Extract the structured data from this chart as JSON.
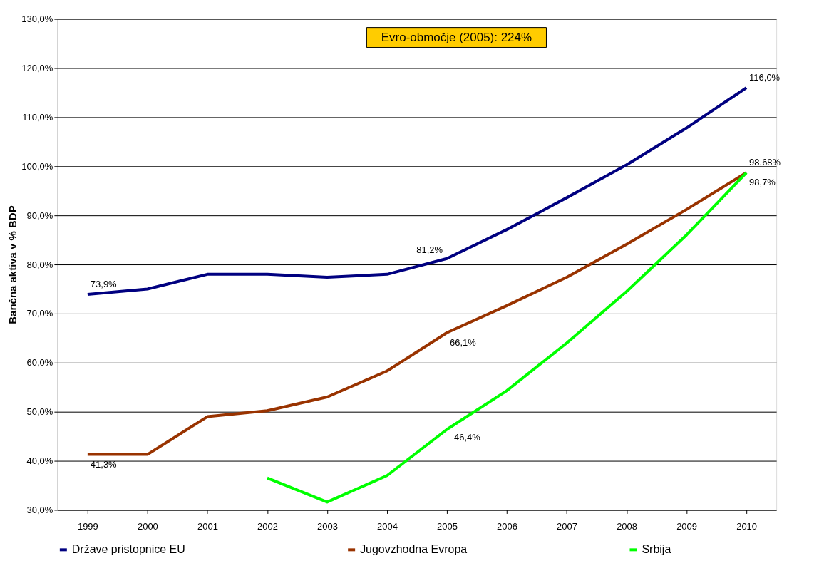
{
  "chart_data": {
    "type": "line",
    "ylabel": "Bančna aktiva v % BDP",
    "categories": [
      "1999",
      "2000",
      "2001",
      "2002",
      "2003",
      "2004",
      "2005",
      "2006",
      "2007",
      "2008",
      "2009",
      "2010"
    ],
    "series": [
      {
        "name": "Države pristopnice EU",
        "color": "#000080",
        "values": [
          73.9,
          75.0,
          78.0,
          78.0,
          77.4,
          78.0,
          81.2,
          87.1,
          93.6,
          100.3,
          107.8,
          116.0
        ],
        "value_labels": [
          "73,9%",
          null,
          null,
          null,
          null,
          null,
          "81,2%",
          null,
          null,
          null,
          null,
          "116,0%"
        ]
      },
      {
        "name": "Jugovzhodna Evropa",
        "color": "#993300",
        "values": [
          41.3,
          41.3,
          49.0,
          50.2,
          53.0,
          58.3,
          66.1,
          71.6,
          77.4,
          84.1,
          91.2,
          98.7
        ],
        "value_labels": [
          "41,3%",
          null,
          null,
          null,
          null,
          null,
          "66,1%",
          null,
          null,
          null,
          null,
          "98,7%"
        ]
      },
      {
        "name": "Srbija",
        "color": "#00ff00",
        "values": [
          null,
          null,
          null,
          36.5,
          31.6,
          37.0,
          46.4,
          54.3,
          64.0,
          74.5,
          86.0,
          98.68
        ],
        "value_labels": [
          null,
          null,
          null,
          null,
          null,
          null,
          "46,4%",
          null,
          null,
          null,
          null,
          "98,68%"
        ]
      }
    ],
    "ylim": [
      30,
      130
    ],
    "yticks": [
      {
        "value": 30,
        "label": "30,0%"
      },
      {
        "value": 40,
        "label": "40,0%"
      },
      {
        "value": 50,
        "label": "50,0%"
      },
      {
        "value": 60,
        "label": "60,0%"
      },
      {
        "value": 70,
        "label": "70,0%"
      },
      {
        "value": 80,
        "label": "80,0%"
      },
      {
        "value": 90,
        "label": "90,0%"
      },
      {
        "value": 100,
        "label": "100,0%"
      },
      {
        "value": 110,
        "label": "110,0%"
      },
      {
        "value": 120,
        "label": "120,0%"
      },
      {
        "value": 130,
        "label": "130,0%"
      }
    ],
    "annotations": [
      "Evro-območje (2005): 224%"
    ],
    "grid": "y",
    "legend": "bottom",
    "marker": "none",
    "line_style": "solid"
  }
}
